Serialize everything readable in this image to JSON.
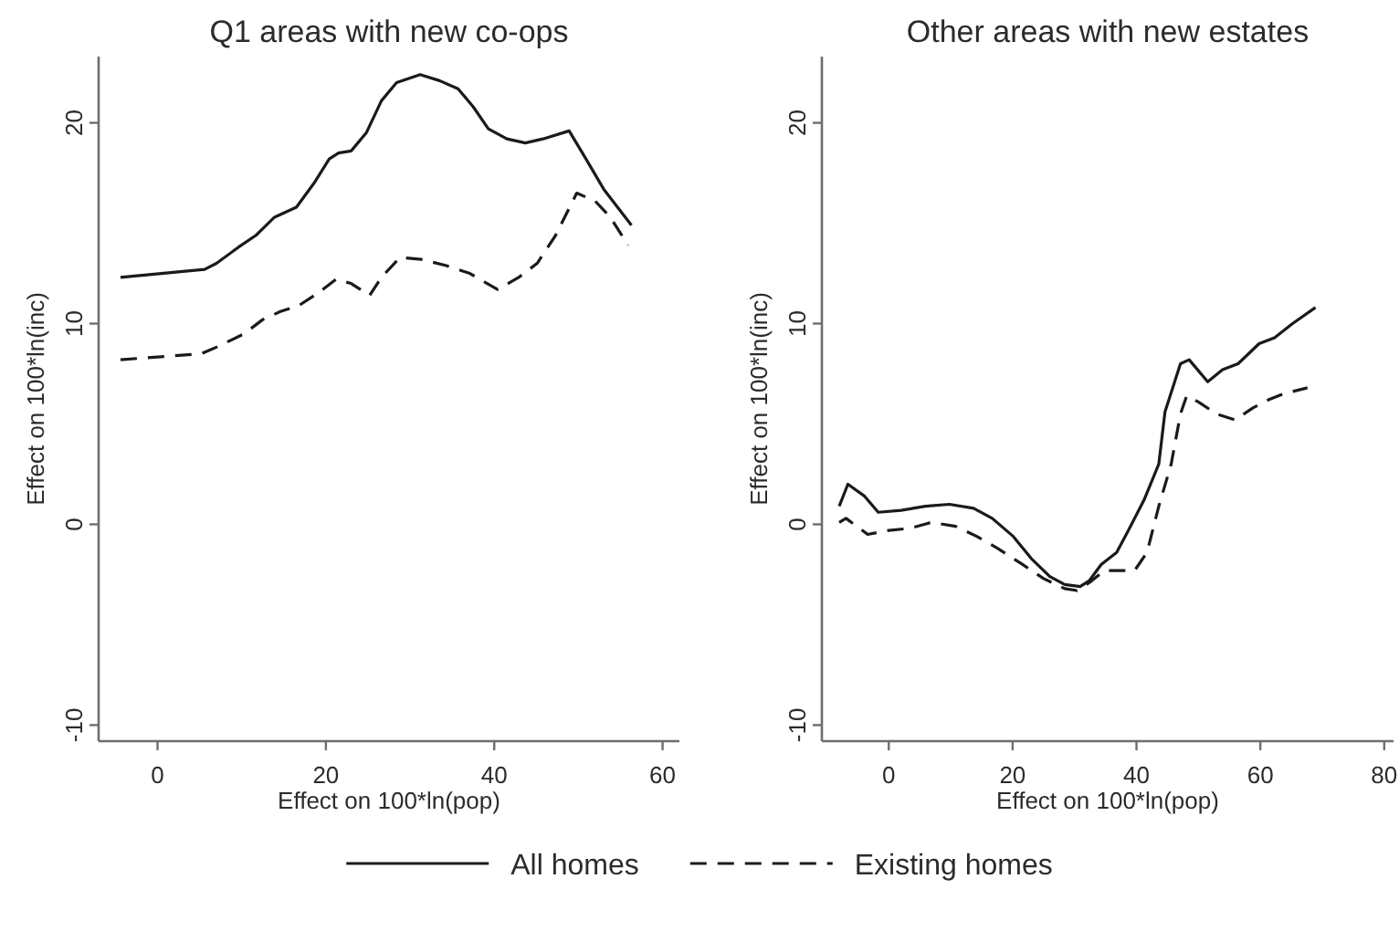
{
  "chart_data": [
    {
      "type": "line",
      "title": "Q1 areas with new co-ops",
      "xlabel": "Effect on 100*ln(pop)",
      "ylabel": "Effect on 100*ln(inc)",
      "xlim": [
        -7,
        62
      ],
      "ylim": [
        -10.8,
        23.3
      ],
      "xticks": [
        0,
        20,
        40,
        60
      ],
      "yticks": [
        -10,
        0,
        10,
        20
      ],
      "grid": false,
      "legend": "bottom",
      "series": [
        {
          "name": "All homes",
          "color": "#1a1a1a",
          "line_style": "solid",
          "x": [
            -4.4,
            5.6,
            7.0,
            9.6,
            11.7,
            13.9,
            16.5,
            18.6,
            20.4,
            21.5,
            23.0,
            24.8,
            26.6,
            28.4,
            31.2,
            33.5,
            35.7,
            37.5,
            39.3,
            41.5,
            43.7,
            45.8,
            48.9,
            50.9,
            53.0,
            56.3
          ],
          "values": [
            12.3,
            12.7,
            13.0,
            13.8,
            14.4,
            15.3,
            15.8,
            17.0,
            18.2,
            18.5,
            18.6,
            19.5,
            21.1,
            22.0,
            22.4,
            22.1,
            21.7,
            20.8,
            19.7,
            19.2,
            19.0,
            19.2,
            19.6,
            18.2,
            16.7,
            14.9
          ]
        },
        {
          "name": "Existing homes",
          "color": "#1a1a1a",
          "line_style": "dashed",
          "x": [
            -4.4,
            5.2,
            7.4,
            10.3,
            12.5,
            14.6,
            16.8,
            19.0,
            21.2,
            23.0,
            25.2,
            26.6,
            28.8,
            31.3,
            34.2,
            37.1,
            40.4,
            42.9,
            45.1,
            47.3,
            49.8,
            52.0,
            53.8,
            55.9
          ],
          "values": [
            8.2,
            8.5,
            8.9,
            9.5,
            10.2,
            10.6,
            10.9,
            11.5,
            12.2,
            12.0,
            11.4,
            12.3,
            13.3,
            13.2,
            12.9,
            12.5,
            11.7,
            12.3,
            13.0,
            14.4,
            16.5,
            16.1,
            15.3,
            13.9
          ]
        }
      ]
    },
    {
      "type": "line",
      "title": "Other areas with new estates",
      "xlabel": "Effect on 100*ln(pop)",
      "ylabel": "Effect on 100*ln(inc)",
      "xlim": [
        -10.8,
        81.5
      ],
      "ylim": [
        -10.8,
        23.3
      ],
      "xticks": [
        0,
        20,
        40,
        60,
        80
      ],
      "yticks": [
        -10,
        0,
        10,
        20
      ],
      "grid": false,
      "legend": "bottom",
      "series": [
        {
          "name": "All homes",
          "color": "#1a1a1a",
          "line_style": "solid",
          "x": [
            -8.0,
            -6.6,
            -3.9,
            -1.7,
            2.0,
            5.9,
            9.8,
            13.7,
            16.7,
            20.1,
            23.0,
            26.0,
            28.4,
            30.9,
            32.4,
            34.3,
            36.8,
            38.7,
            41.2,
            43.6,
            44.6,
            47.1,
            48.5,
            51.5,
            53.9,
            56.4,
            59.8,
            62.3,
            65.2,
            68.9
          ],
          "values": [
            0.9,
            2.0,
            1.4,
            0.6,
            0.7,
            0.9,
            1.0,
            0.8,
            0.3,
            -0.6,
            -1.7,
            -2.6,
            -3.0,
            -3.1,
            -2.8,
            -2.0,
            -1.4,
            -0.3,
            1.2,
            3.0,
            5.6,
            8.0,
            8.2,
            7.1,
            7.7,
            8.0,
            9.0,
            9.3,
            10.0,
            10.8
          ]
        },
        {
          "name": "Existing homes",
          "color": "#1a1a1a",
          "line_style": "dashed",
          "x": [
            -8.0,
            -6.9,
            -3.4,
            0,
            3.4,
            6.9,
            10.8,
            14.2,
            17.6,
            21.6,
            25.0,
            28.4,
            30.4,
            32.4,
            34.8,
            37.3,
            39.7,
            41.7,
            43.6,
            45.6,
            47.1,
            48.1,
            50.0,
            52.9,
            55.9,
            58.8,
            61.3,
            63.7,
            67.6
          ],
          "values": [
            0.1,
            0.3,
            -0.5,
            -0.3,
            -0.2,
            0.1,
            -0.1,
            -0.6,
            -1.2,
            -2.0,
            -2.7,
            -3.2,
            -3.3,
            -2.9,
            -2.3,
            -2.3,
            -2.3,
            -1.4,
            0.9,
            3.0,
            5.5,
            6.4,
            6.1,
            5.5,
            5.2,
            5.8,
            6.2,
            6.5,
            6.8
          ]
        }
      ]
    }
  ]
}
